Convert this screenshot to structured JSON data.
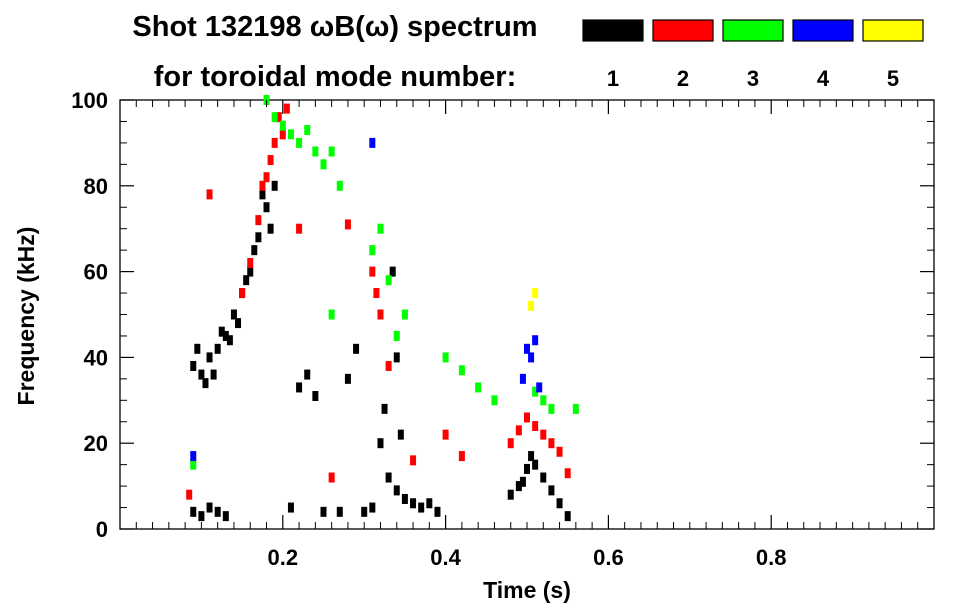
{
  "title": {
    "line1": "Shot 132198 ωB(ω) spectrum",
    "line2": "for toroidal mode number:"
  },
  "legend": {
    "entries": [
      {
        "label": "1",
        "color": "#000000"
      },
      {
        "label": "2",
        "color": "#ff0000"
      },
      {
        "label": "3",
        "color": "#00ff00"
      },
      {
        "label": "4",
        "color": "#0000ff"
      },
      {
        "label": "5",
        "color": "#ffff00"
      }
    ]
  },
  "chart_data": {
    "type": "heatmap",
    "title": "Shot 132198 ωB(ω) spectrum",
    "xlabel": "Time (s)",
    "ylabel": "Frequency (kHz)",
    "xlim": [
      0.0,
      1.0
    ],
    "ylim": [
      0,
      100
    ],
    "xticks": [
      "0.2",
      "0.4",
      "0.6",
      "0.8"
    ],
    "xtick_values": [
      0.2,
      0.4,
      0.6,
      0.8
    ],
    "yticks": [
      "0",
      "20",
      "40",
      "60",
      "80",
      "100"
    ],
    "ytick_values": [
      0,
      20,
      40,
      60,
      80,
      100
    ],
    "grid": false,
    "legend_position": "top-right",
    "series": [
      {
        "name": "1",
        "color": "#000000",
        "points": [
          [
            0.09,
            4
          ],
          [
            0.1,
            3
          ],
          [
            0.11,
            5
          ],
          [
            0.12,
            4
          ],
          [
            0.13,
            3
          ],
          [
            0.09,
            38
          ],
          [
            0.1,
            36
          ],
          [
            0.11,
            40
          ],
          [
            0.12,
            42
          ],
          [
            0.13,
            45
          ],
          [
            0.14,
            50
          ],
          [
            0.15,
            55
          ],
          [
            0.16,
            60
          ],
          [
            0.17,
            68
          ],
          [
            0.18,
            75
          ],
          [
            0.19,
            80
          ],
          [
            0.185,
            70
          ],
          [
            0.175,
            78
          ],
          [
            0.165,
            65
          ],
          [
            0.155,
            58
          ],
          [
            0.145,
            48
          ],
          [
            0.135,
            44
          ],
          [
            0.125,
            46
          ],
          [
            0.115,
            36
          ],
          [
            0.105,
            34
          ],
          [
            0.095,
            42
          ],
          [
            0.3,
            4
          ],
          [
            0.31,
            5
          ],
          [
            0.32,
            20
          ],
          [
            0.325,
            28
          ],
          [
            0.33,
            12
          ],
          [
            0.34,
            9
          ],
          [
            0.35,
            7
          ],
          [
            0.36,
            6
          ],
          [
            0.37,
            5
          ],
          [
            0.38,
            6
          ],
          [
            0.39,
            4
          ],
          [
            0.335,
            60
          ],
          [
            0.34,
            40
          ],
          [
            0.345,
            22
          ],
          [
            0.48,
            8
          ],
          [
            0.49,
            10
          ],
          [
            0.5,
            14
          ],
          [
            0.51,
            15
          ],
          [
            0.52,
            12
          ],
          [
            0.53,
            9
          ],
          [
            0.54,
            6
          ],
          [
            0.55,
            3
          ],
          [
            0.505,
            17
          ],
          [
            0.495,
            11
          ],
          [
            0.22,
            33
          ],
          [
            0.23,
            36
          ],
          [
            0.24,
            31
          ],
          [
            0.28,
            35
          ],
          [
            0.29,
            42
          ],
          [
            0.21,
            5
          ],
          [
            0.25,
            4
          ],
          [
            0.27,
            4
          ]
        ]
      },
      {
        "name": "2",
        "color": "#ff0000",
        "points": [
          [
            0.085,
            8
          ],
          [
            0.11,
            78
          ],
          [
            0.15,
            55
          ],
          [
            0.16,
            62
          ],
          [
            0.17,
            72
          ],
          [
            0.18,
            82
          ],
          [
            0.19,
            90
          ],
          [
            0.195,
            96
          ],
          [
            0.185,
            86
          ],
          [
            0.175,
            80
          ],
          [
            0.2,
            92
          ],
          [
            0.205,
            98
          ],
          [
            0.22,
            70
          ],
          [
            0.31,
            60
          ],
          [
            0.315,
            55
          ],
          [
            0.32,
            50
          ],
          [
            0.33,
            38
          ],
          [
            0.28,
            71
          ],
          [
            0.48,
            20
          ],
          [
            0.49,
            23
          ],
          [
            0.5,
            26
          ],
          [
            0.51,
            24
          ],
          [
            0.52,
            22
          ],
          [
            0.53,
            20
          ],
          [
            0.54,
            18
          ],
          [
            0.55,
            13
          ],
          [
            0.36,
            16
          ],
          [
            0.4,
            22
          ],
          [
            0.42,
            17
          ],
          [
            0.26,
            12
          ]
        ]
      },
      {
        "name": "3",
        "color": "#00ff00",
        "points": [
          [
            0.09,
            15
          ],
          [
            0.18,
            100
          ],
          [
            0.19,
            96
          ],
          [
            0.2,
            94
          ],
          [
            0.21,
            92
          ],
          [
            0.22,
            90
          ],
          [
            0.23,
            93
          ],
          [
            0.24,
            88
          ],
          [
            0.25,
            85
          ],
          [
            0.26,
            88
          ],
          [
            0.27,
            80
          ],
          [
            0.31,
            65
          ],
          [
            0.32,
            70
          ],
          [
            0.33,
            58
          ],
          [
            0.34,
            45
          ],
          [
            0.35,
            50
          ],
          [
            0.4,
            40
          ],
          [
            0.42,
            37
          ],
          [
            0.44,
            33
          ],
          [
            0.46,
            30
          ],
          [
            0.51,
            32
          ],
          [
            0.52,
            30
          ],
          [
            0.53,
            28
          ],
          [
            0.56,
            28
          ],
          [
            0.26,
            50
          ]
        ]
      },
      {
        "name": "4",
        "color": "#0000ff",
        "points": [
          [
            0.09,
            17
          ],
          [
            0.31,
            90
          ],
          [
            0.5,
            42
          ],
          [
            0.51,
            44
          ],
          [
            0.505,
            40
          ],
          [
            0.495,
            35
          ],
          [
            0.515,
            33
          ]
        ]
      },
      {
        "name": "5",
        "color": "#ffff00",
        "points": [
          [
            0.51,
            55
          ],
          [
            0.505,
            52
          ]
        ]
      }
    ]
  }
}
